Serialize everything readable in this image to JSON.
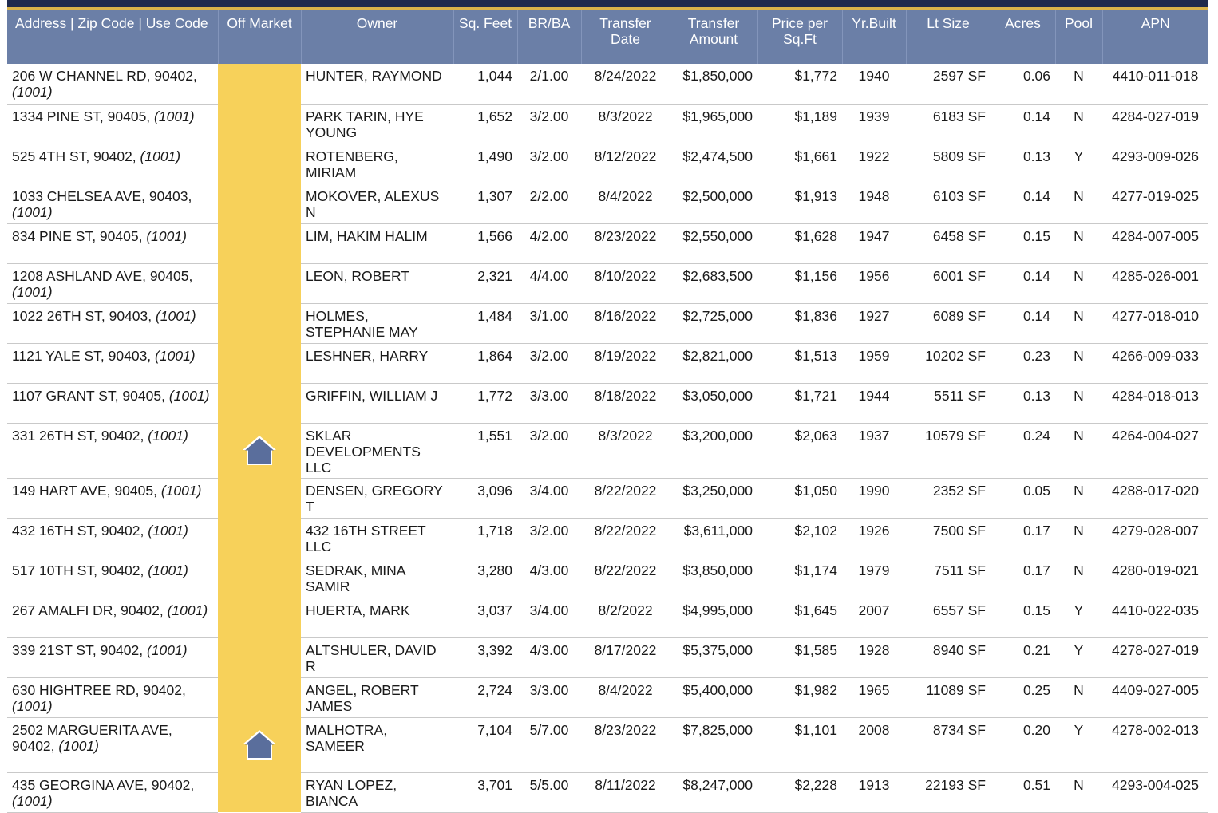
{
  "headers": {
    "address": "Address | Zip Code | Use Code",
    "off_market": "Off Market",
    "owner": "Owner",
    "sq_feet": "Sq. Feet",
    "br_ba": "BR/BA",
    "transfer_date_1": "Transfer",
    "transfer_date_2": "Date",
    "transfer_amount_1": "Transfer",
    "transfer_amount_2": "Amount",
    "price_sqft_1": "Price per",
    "price_sqft_2": "Sq.Ft",
    "yr_built": "Yr.Built",
    "lt_size": "Lt Size",
    "acres": "Acres",
    "pool": "Pool",
    "apn": "APN"
  },
  "colors": {
    "header_bg": "#6b7fa7",
    "off_market_bg": "#f7d15a",
    "top_bar": "#1f2a4d",
    "accent": "#d9b24a",
    "house_icon": "#5a6e9c"
  },
  "rows": [
    {
      "address": "206 W CHANNEL RD, 90402,",
      "use_code": "(1001)",
      "off_market": "",
      "owner": "HUNTER, RAYMOND",
      "sqft": "1,044",
      "brba": "2/1.00",
      "date": "8/24/2022",
      "amount": "$1,850,000",
      "ppsf": "$1,772",
      "yr": "1940",
      "lot": "2597 SF",
      "acres": "0.06",
      "pool": "N",
      "apn": "4410-011-018"
    },
    {
      "address": "1334 PINE ST, 90405,",
      "use_code": "(1001)",
      "off_market": "",
      "owner": "PARK TARIN, HYE YOUNG",
      "sqft": "1,652",
      "brba": "3/2.00",
      "date": "8/3/2022",
      "amount": "$1,965,000",
      "ppsf": "$1,189",
      "yr": "1939",
      "lot": "6183 SF",
      "acres": "0.14",
      "pool": "N",
      "apn": "4284-027-019"
    },
    {
      "address": "525 4TH ST, 90402,",
      "use_code": "(1001)",
      "off_market": "",
      "owner": "ROTENBERG, MIRIAM",
      "sqft": "1,490",
      "brba": "3/2.00",
      "date": "8/12/2022",
      "amount": "$2,474,500",
      "ppsf": "$1,661",
      "yr": "1922",
      "lot": "5809 SF",
      "acres": "0.13",
      "pool": "Y",
      "apn": "4293-009-026"
    },
    {
      "address": "1033 CHELSEA AVE, 90403,",
      "use_code": "(1001)",
      "off_market": "",
      "owner": "MOKOVER, ALEXUS N",
      "sqft": "1,307",
      "brba": "2/2.00",
      "date": "8/4/2022",
      "amount": "$2,500,000",
      "ppsf": "$1,913",
      "yr": "1948",
      "lot": "6103 SF",
      "acres": "0.14",
      "pool": "N",
      "apn": "4277-019-025"
    },
    {
      "address": "834 PINE ST, 90405,",
      "use_code": "(1001)",
      "off_market": "",
      "owner": "LIM, HAKIM HALIM",
      "sqft": "1,566",
      "brba": "4/2.00",
      "date": "8/23/2022",
      "amount": "$2,550,000",
      "ppsf": "$1,628",
      "yr": "1947",
      "lot": "6458 SF",
      "acres": "0.15",
      "pool": "N",
      "apn": "4284-007-005"
    },
    {
      "address": "1208 ASHLAND AVE, 90405,",
      "use_code": "(1001)",
      "off_market": "",
      "owner": "LEON, ROBERT",
      "sqft": "2,321",
      "brba": "4/4.00",
      "date": "8/10/2022",
      "amount": "$2,683,500",
      "ppsf": "$1,156",
      "yr": "1956",
      "lot": "6001 SF",
      "acres": "0.14",
      "pool": "N",
      "apn": "4285-026-001"
    },
    {
      "address": "1022 26TH ST, 90403,",
      "use_code": "(1001)",
      "off_market": "",
      "owner": "HOLMES, STEPHANIE MAY",
      "sqft": "1,484",
      "brba": "3/1.00",
      "date": "8/16/2022",
      "amount": "$2,725,000",
      "ppsf": "$1,836",
      "yr": "1927",
      "lot": "6089 SF",
      "acres": "0.14",
      "pool": "N",
      "apn": "4277-018-010"
    },
    {
      "address": "1121 YALE ST, 90403,",
      "use_code": "(1001)",
      "off_market": "",
      "owner": "LESHNER, HARRY",
      "sqft": "1,864",
      "brba": "3/2.00",
      "date": "8/19/2022",
      "amount": "$2,821,000",
      "ppsf": "$1,513",
      "yr": "1959",
      "lot": "10202 SF",
      "acres": "0.23",
      "pool": "N",
      "apn": "4266-009-033"
    },
    {
      "address": "1107 GRANT ST, 90405,",
      "use_code": "(1001)",
      "off_market": "",
      "owner": "GRIFFIN, WILLIAM J",
      "sqft": "1,772",
      "brba": "3/3.00",
      "date": "8/18/2022",
      "amount": "$3,050,000",
      "ppsf": "$1,721",
      "yr": "1944",
      "lot": "5511 SF",
      "acres": "0.13",
      "pool": "N",
      "apn": "4284-018-013"
    },
    {
      "address": "331 26TH ST, 90402,",
      "use_code": "(1001)",
      "off_market": "house-icon",
      "owner": "SKLAR DEVELOPMENTS LLC",
      "sqft": "1,551",
      "brba": "3/2.00",
      "date": "8/3/2022",
      "amount": "$3,200,000",
      "ppsf": "$2,063",
      "yr": "1937",
      "lot": "10579 SF",
      "acres": "0.24",
      "pool": "N",
      "apn": "4264-004-027"
    },
    {
      "address": "149 HART AVE, 90405,",
      "use_code": "(1001)",
      "off_market": "",
      "owner": "DENSEN, GREGORY T",
      "sqft": "3,096",
      "brba": "3/4.00",
      "date": "8/22/2022",
      "amount": "$3,250,000",
      "ppsf": "$1,050",
      "yr": "1990",
      "lot": "2352 SF",
      "acres": "0.05",
      "pool": "N",
      "apn": "4288-017-020"
    },
    {
      "address": "432 16TH ST, 90402,",
      "use_code": "(1001)",
      "off_market": "",
      "owner": "432 16TH STREET LLC",
      "sqft": "1,718",
      "brba": "3/2.00",
      "date": "8/22/2022",
      "amount": "$3,611,000",
      "ppsf": "$2,102",
      "yr": "1926",
      "lot": "7500 SF",
      "acres": "0.17",
      "pool": "N",
      "apn": "4279-028-007"
    },
    {
      "address": "517 10TH ST, 90402,",
      "use_code": "(1001)",
      "off_market": "",
      "owner": "SEDRAK, MINA SAMIR",
      "sqft": "3,280",
      "brba": "4/3.00",
      "date": "8/22/2022",
      "amount": "$3,850,000",
      "ppsf": "$1,174",
      "yr": "1979",
      "lot": "7511 SF",
      "acres": "0.17",
      "pool": "N",
      "apn": "4280-019-021"
    },
    {
      "address": "267 AMALFI DR, 90402,",
      "use_code": "(1001)",
      "off_market": "",
      "owner": "HUERTA, MARK",
      "sqft": "3,037",
      "brba": "3/4.00",
      "date": "8/2/2022",
      "amount": "$4,995,000",
      "ppsf": "$1,645",
      "yr": "2007",
      "lot": "6557 SF",
      "acres": "0.15",
      "pool": "Y",
      "apn": "4410-022-035"
    },
    {
      "address": "339 21ST ST, 90402,",
      "use_code": "(1001)",
      "off_market": "",
      "owner": "ALTSHULER, DAVID R",
      "sqft": "3,392",
      "brba": "4/3.00",
      "date": "8/17/2022",
      "amount": "$5,375,000",
      "ppsf": "$1,585",
      "yr": "1928",
      "lot": "8940 SF",
      "acres": "0.21",
      "pool": "Y",
      "apn": "4278-027-019"
    },
    {
      "address": "630 HIGHTREE RD, 90402,",
      "use_code": "(1001)",
      "off_market": "",
      "owner": "ANGEL, ROBERT JAMES",
      "sqft": "2,724",
      "brba": "3/3.00",
      "date": "8/4/2022",
      "amount": "$5,400,000",
      "ppsf": "$1,982",
      "yr": "1965",
      "lot": "11089 SF",
      "acres": "0.25",
      "pool": "N",
      "apn": "4409-027-005"
    },
    {
      "address": "2502 MARGUERITA AVE, 90402,",
      "use_code": "(1001)",
      "off_market": "house-icon",
      "owner": "MALHOTRA, SAMEER",
      "sqft": "7,104",
      "brba": "5/7.00",
      "date": "8/23/2022",
      "amount": "$7,825,000",
      "ppsf": "$1,101",
      "yr": "2008",
      "lot": "8734 SF",
      "acres": "0.20",
      "pool": "Y",
      "apn": "4278-002-013"
    },
    {
      "address": "435 GEORGINA AVE, 90402,",
      "use_code": "(1001)",
      "off_market": "",
      "owner": "RYAN LOPEZ, BIANCA",
      "sqft": "3,701",
      "brba": "5/5.00",
      "date": "8/11/2022",
      "amount": "$8,247,000",
      "ppsf": "$2,228",
      "yr": "1913",
      "lot": "22193 SF",
      "acres": "0.51",
      "pool": "N",
      "apn": "4293-004-025"
    }
  ]
}
